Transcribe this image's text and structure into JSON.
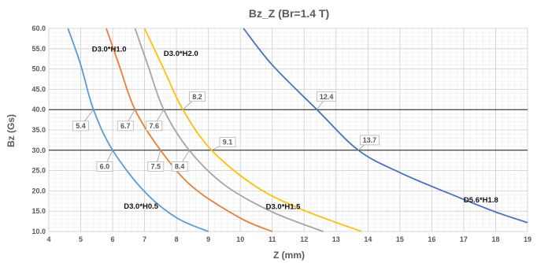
{
  "chart_data": {
    "type": "line",
    "title": "Bz_Z (Br=1.4 T)",
    "xlabel": "Z (mm)",
    "ylabel": "Bz (Gs)",
    "xlim": [
      4,
      19
    ],
    "ylim": [
      10,
      60
    ],
    "x_ticks": [
      4,
      5,
      6,
      7,
      8,
      9,
      10,
      11,
      12,
      13,
      14,
      15,
      16,
      17,
      18,
      19
    ],
    "y_ticks": [
      "10.0",
      "15.0",
      "20.0",
      "25.0",
      "30.0",
      "35.0",
      "40.0",
      "45.0",
      "50.0",
      "55.0",
      "60.0"
    ],
    "grid": true,
    "reference_lines": [
      40,
      30
    ],
    "series": [
      {
        "name": "D3.0*H0.5",
        "color": "#5B9BD5",
        "points": [
          [
            4.6,
            60
          ],
          [
            5.0,
            51
          ],
          [
            5.4,
            40
          ],
          [
            6.0,
            30
          ],
          [
            7.0,
            19.8
          ],
          [
            8.0,
            13.4
          ],
          [
            9.0,
            10
          ]
        ]
      },
      {
        "name": "D3.0*H1.0",
        "color": "#ED7D31",
        "points": [
          [
            5.8,
            60
          ],
          [
            6.2,
            51
          ],
          [
            6.7,
            40
          ],
          [
            7.5,
            30
          ],
          [
            8.5,
            21
          ],
          [
            10.0,
            13.3
          ],
          [
            11.0,
            10
          ]
        ]
      },
      {
        "name": "D3.0*H1.5",
        "color": "#A5A5A5",
        "points": [
          [
            6.7,
            60
          ],
          [
            7.1,
            51
          ],
          [
            7.6,
            40
          ],
          [
            8.4,
            30
          ],
          [
            9.5,
            21.5
          ],
          [
            11.0,
            14.8
          ],
          [
            12.6,
            10
          ]
        ]
      },
      {
        "name": "D3.0*H2.0",
        "color": "#FFC000",
        "points": [
          [
            7.0,
            60
          ],
          [
            7.6,
            50
          ],
          [
            8.2,
            40
          ],
          [
            9.1,
            30
          ],
          [
            10.5,
            21
          ],
          [
            12.0,
            15.2
          ],
          [
            13.8,
            10
          ]
        ]
      },
      {
        "name": "D5.6*H1.8",
        "color": "#4472C4",
        "points": [
          [
            10.1,
            60
          ],
          [
            11.0,
            51
          ],
          [
            12.4,
            40
          ],
          [
            13.7,
            30
          ],
          [
            15.0,
            24.5
          ],
          [
            16.5,
            19.5
          ],
          [
            18.0,
            14.8
          ],
          [
            19.0,
            12.2
          ]
        ]
      }
    ],
    "series_labels": [
      {
        "text": "D3.0*H1.0",
        "x": 5.35,
        "y": 54.3
      },
      {
        "text": "D3.0*H2.0",
        "x": 7.6,
        "y": 53.2
      },
      {
        "text": "D3.0*H0.5",
        "x": 6.35,
        "y": 15.6
      },
      {
        "text": "D3.0*H1.5",
        "x": 10.8,
        "y": 15.5
      },
      {
        "text": "D5.6*H1.8",
        "x": 17.0,
        "y": 17.2
      }
    ],
    "callouts": [
      {
        "text": "5.4",
        "x": 5.4,
        "y": 40,
        "label_x": 5.0,
        "label_y": 36.0
      },
      {
        "text": "6.7",
        "x": 6.7,
        "y": 40,
        "label_x": 6.4,
        "label_y": 36.0
      },
      {
        "text": "7.6",
        "x": 7.6,
        "y": 40,
        "label_x": 7.3,
        "label_y": 36.0
      },
      {
        "text": "8.2",
        "x": 8.2,
        "y": 40,
        "label_x": 8.65,
        "label_y": 43.2
      },
      {
        "text": "12.4",
        "x": 12.4,
        "y": 40,
        "label_x": 12.7,
        "label_y": 43.2
      },
      {
        "text": "6.0",
        "x": 6.0,
        "y": 30,
        "label_x": 5.75,
        "label_y": 26.0
      },
      {
        "text": "7.5",
        "x": 7.5,
        "y": 30,
        "label_x": 7.35,
        "label_y": 26.0
      },
      {
        "text": "8.4",
        "x": 8.4,
        "y": 30,
        "label_x": 8.1,
        "label_y": 26.0
      },
      {
        "text": "9.1",
        "x": 9.1,
        "y": 30,
        "label_x": 9.6,
        "label_y": 32.0
      },
      {
        "text": "13.7",
        "x": 13.7,
        "y": 30,
        "label_x": 14.05,
        "label_y": 32.5
      }
    ]
  }
}
